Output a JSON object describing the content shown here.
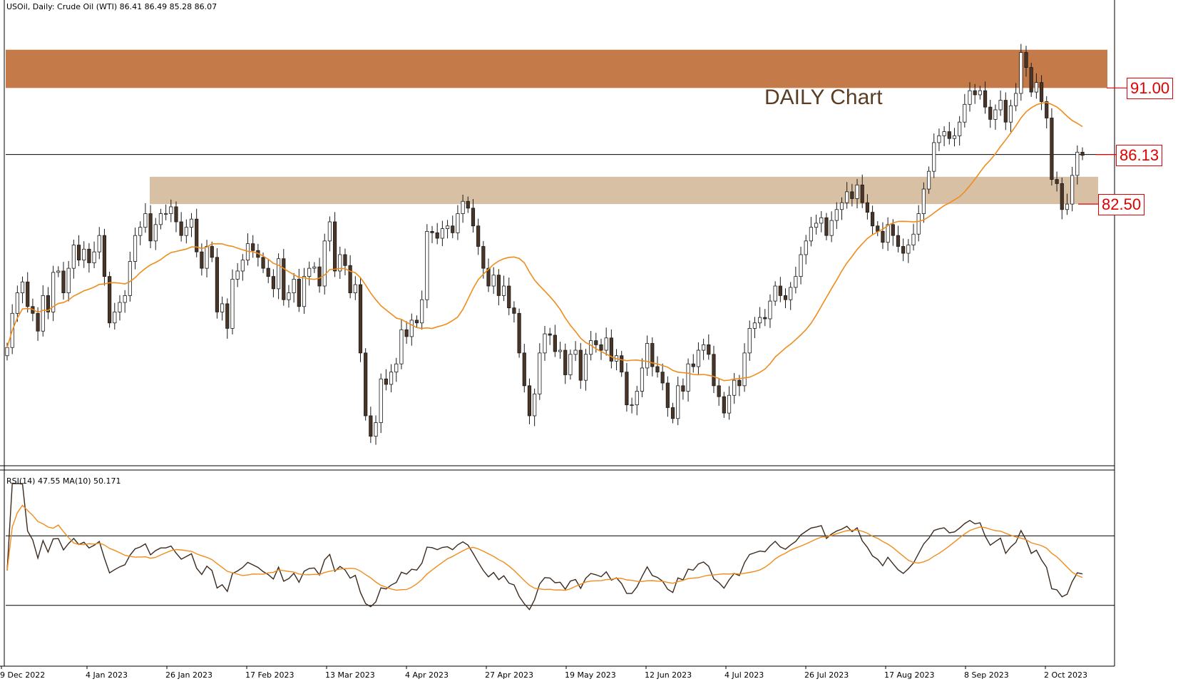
{
  "header": {
    "price": "USOil, Daily:  Crude Oil (WTI)  86.41 86.49 85.28 86.07",
    "rsi": "RSI(14) 47.55 MA(10) 50.171"
  },
  "watermark": "DAILY Chart",
  "levels": [
    {
      "label": "91.00",
      "value": 91.0
    },
    {
      "label": "86.13",
      "value": 86.13
    },
    {
      "label": "82.50",
      "value": 82.5
    }
  ],
  "chart_data": [
    {
      "type": "candlestick",
      "title": "USOil, Daily:  Crude Oil (WTI)",
      "ohlc_last": {
        "open": 86.41,
        "high": 86.49,
        "low": 85.28,
        "close": 86.07
      },
      "ylim": [
        63.5,
        96.5
      ],
      "x_tick_labels": [
        "9 Dec 2022",
        "4 Jan 2023",
        "26 Jan 2023",
        "17 Feb 2023",
        "13 Mar 2023",
        "4 Apr 2023",
        "27 Apr 2023",
        "19 May 2023",
        "12 Jun 2023",
        "4 Jul 2023",
        "26 Jul 2023",
        "17 Aug 2023",
        "8 Sep 2023",
        "2 Oct 2023"
      ],
      "zones": [
        {
          "name": "resistance",
          "from": 91.0,
          "to": 93.8,
          "color": "#c47a49"
        },
        {
          "name": "support",
          "from": 82.5,
          "to": 84.5,
          "color": "#d8c0a4"
        }
      ],
      "horizontal_line": 86.13,
      "ma_color": "#f08c1c",
      "closes": [
        72.0,
        74.5,
        76.0,
        76.8,
        75.0,
        74.5,
        73.2,
        75.8,
        74.6,
        77.5,
        77.6,
        76.0,
        77.8,
        79.5,
        78.4,
        79.2,
        78.2,
        79.0,
        80.2,
        77.2,
        73.8,
        74.6,
        75.3,
        75.8,
        78.3,
        80.2,
        80.8,
        81.8,
        79.8,
        81.0,
        81.8,
        81.8,
        82.3,
        81.2,
        80.2,
        80.8,
        81.4,
        79.0,
        77.8,
        79.4,
        78.6,
        74.6,
        75.2,
        73.4,
        77.0,
        77.6,
        78.4,
        79.6,
        79.1,
        78.6,
        77.8,
        77.2,
        76.3,
        78.5,
        75.5,
        76.0,
        77.0,
        75.0,
        77.2,
        77.8,
        77.9,
        76.5,
        79.8,
        81.2,
        77.6,
        78.8,
        78.0,
        76.0,
        76.6,
        71.6,
        67.0,
        65.5,
        66.5,
        69.7,
        69.3,
        70.2,
        70.8,
        73.3,
        72.8,
        74.0,
        73.8,
        75.5,
        80.5,
        80.4,
        80.0,
        80.7,
        80.9,
        80.4,
        81.8,
        82.7,
        82.2,
        80.9,
        79.4,
        77.8,
        76.5,
        77.3,
        75.8,
        76.5,
        74.9,
        74.5,
        71.6,
        69.2,
        67.0,
        68.6,
        71.6,
        73.0,
        72.9,
        71.7,
        71.8,
        70.0,
        71.5,
        71.8,
        69.6,
        71.5,
        72.5,
        72.2,
        71.8,
        72.7,
        71.0,
        71.4,
        70.2,
        67.8,
        67.8,
        68.8,
        70.5,
        72.3,
        70.6,
        70.2,
        69.4,
        67.6,
        66.8,
        69.2,
        68.8,
        70.8,
        70.6,
        71.8,
        72.2,
        71.5,
        69.2,
        68.4,
        67.2,
        68.5,
        69.6,
        69.2,
        71.6,
        73.4,
        73.8,
        74.2,
        74.1,
        75.4,
        76.5,
        75.8,
        75.5,
        76.4,
        77.2,
        78.8,
        79.8,
        80.8,
        81.1,
        81.5,
        80.2,
        81.3,
        82.1,
        82.6,
        83.4,
        82.9,
        83.9,
        82.6,
        81.9,
        80.9,
        80.5,
        79.7,
        81.0,
        80.2,
        79.4,
        78.9,
        79.5,
        80.3,
        81.8,
        83.6,
        84.9,
        87.0,
        87.5,
        87.8,
        87.3,
        87.5,
        88.5,
        89.8,
        90.8,
        90.5,
        90.8,
        89.6,
        88.7,
        89.4,
        90.1,
        88.5,
        89.7,
        90.6,
        93.6,
        92.5,
        90.7,
        91.4,
        90.0,
        88.8,
        84.3,
        84.0,
        82.1,
        82.5,
        84.6,
        86.3,
        86.07
      ],
      "rsi": {
        "levels": [
          70,
          30
        ],
        "last_value": 47.55,
        "ma_period": 10,
        "ma_last": 50.171
      }
    }
  ]
}
